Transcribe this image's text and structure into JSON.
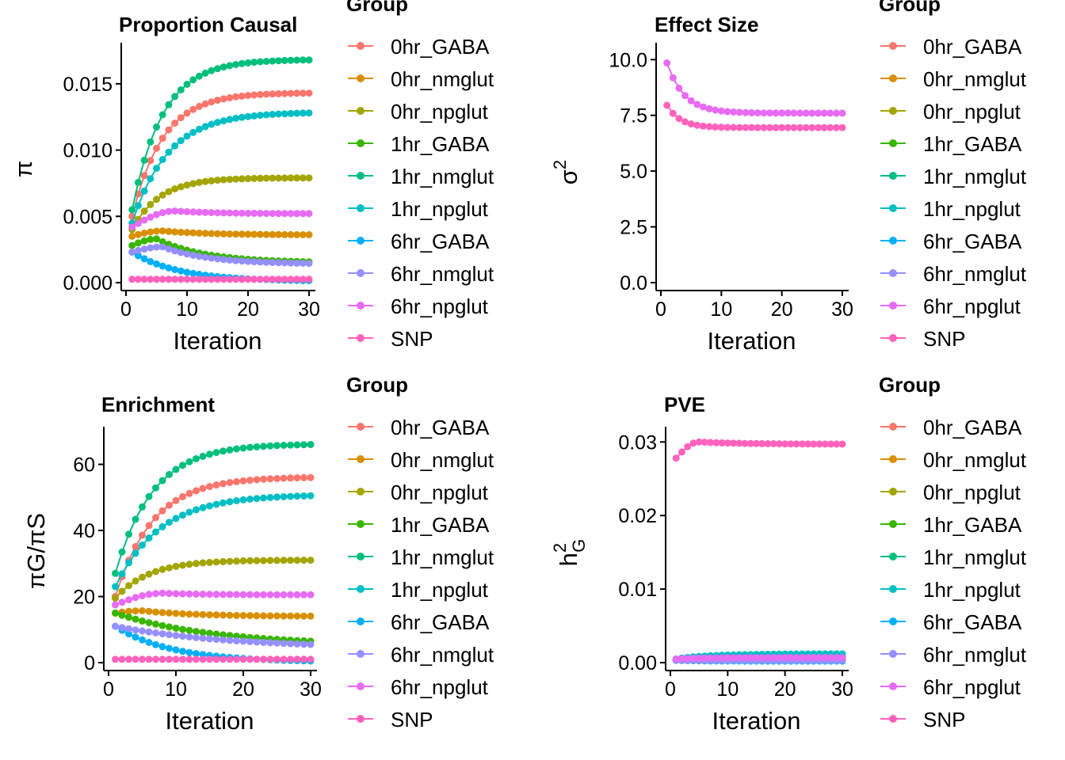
{
  "groups": [
    "0hr_GABA",
    "0hr_nmglut",
    "0hr_npglut",
    "1hr_GABA",
    "1hr_nmglut",
    "1hr_npglut",
    "6hr_GABA",
    "6hr_nmglut",
    "6hr_npglut",
    "SNP"
  ],
  "colors": {
    "0hr_GABA": "#F8766D",
    "0hr_nmglut": "#D89000",
    "0hr_npglut": "#A3A500",
    "1hr_GABA": "#39B600",
    "1hr_nmglut": "#00BF7D",
    "1hr_npglut": "#00BFC4",
    "6hr_GABA": "#00B0F6",
    "6hr_nmglut": "#9590FF",
    "6hr_npglut": "#E76BF3",
    "SNP": "#FF62BC"
  },
  "legend_title": "Group",
  "chart_data": [
    {
      "id": "proportion",
      "type": "line",
      "title": "Proportion Causal",
      "xlabel": "Iteration",
      "ylabel": "π",
      "xlim": [
        0,
        30
      ],
      "ylim": [
        0,
        0.0175
      ],
      "xticks": [
        0,
        10,
        20,
        30
      ],
      "yticks": [
        0.0,
        0.005,
        0.01,
        0.015
      ],
      "ytick_labels": [
        "0.000",
        "0.005",
        "0.010",
        "0.015"
      ],
      "legend": "right",
      "series": [
        {
          "name": "0hr_GABA",
          "start": 0.005,
          "end": 0.0143,
          "rate": 0.2
        },
        {
          "name": "0hr_nmglut",
          "start": 0.0035,
          "end": 0.0036,
          "peak": 0.0039,
          "peak_x": 6
        },
        {
          "name": "0hr_npglut",
          "start": 0.004,
          "end": 0.0079,
          "rate": 0.22
        },
        {
          "name": "1hr_GABA",
          "start": 0.0028,
          "end": 0.0015,
          "peak": 0.0033,
          "peak_x": 5
        },
        {
          "name": "1hr_nmglut",
          "start": 0.0055,
          "end": 0.0168,
          "rate": 0.2
        },
        {
          "name": "1hr_npglut",
          "start": 0.0045,
          "end": 0.0128,
          "rate": 0.17
        },
        {
          "name": "6hr_GABA",
          "start": 0.0023,
          "end": 0.00015,
          "rate": 0.13
        },
        {
          "name": "6hr_nmglut",
          "start": 0.0023,
          "end": 0.0014,
          "peak": 0.0027,
          "peak_x": 6
        },
        {
          "name": "6hr_npglut",
          "start": 0.0042,
          "end": 0.0052,
          "peak": 0.0054,
          "peak_x": 8
        },
        {
          "name": "SNP",
          "start": 0.00025,
          "end": 0.00025,
          "rate": 0.2
        }
      ]
    },
    {
      "id": "effect",
      "type": "line",
      "title": "Effect Size",
      "xlabel": "Iteration",
      "ylabel": "σ",
      "ylabel_sup": "2",
      "xlim": [
        0,
        30
      ],
      "ylim": [
        0,
        10.4
      ],
      "xticks": [
        0,
        10,
        20,
        30
      ],
      "yticks": [
        0,
        2.5,
        5,
        7.5,
        10
      ],
      "ytick_labels": [
        "0.0",
        "2.5",
        "5.0",
        "7.5",
        "10.0"
      ],
      "legend": "right",
      "series": [
        {
          "name": "6hr_npglut",
          "start": 9.85,
          "end": 7.6,
          "rate": 0.35
        },
        {
          "name": "SNP",
          "start": 7.95,
          "end": 6.95,
          "rate": 0.45
        }
      ]
    },
    {
      "id": "enrichment",
      "type": "line",
      "title": "Enrichment",
      "xlabel": "Iteration",
      "ylabel": "πG/πS",
      "xlim": [
        0,
        30
      ],
      "ylim": [
        0,
        69
      ],
      "xticks": [
        0,
        10,
        20,
        30
      ],
      "yticks": [
        0,
        20,
        40,
        60
      ],
      "ytick_labels": [
        "0",
        "20",
        "40",
        "60"
      ],
      "legend": "right",
      "series": [
        {
          "name": "0hr_GABA",
          "start": 20,
          "end": 56,
          "rate": 0.18
        },
        {
          "name": "0hr_nmglut",
          "start": 15,
          "end": 14,
          "peak": 15.7,
          "peak_x": 5
        },
        {
          "name": "0hr_npglut",
          "start": 19.5,
          "end": 31,
          "rate": 0.2
        },
        {
          "name": "1hr_GABA",
          "start": 15,
          "end": 6.5,
          "rate": 0.07
        },
        {
          "name": "1hr_nmglut",
          "start": 27,
          "end": 66,
          "rate": 0.18
        },
        {
          "name": "1hr_npglut",
          "start": 23,
          "end": 50.5,
          "rate": 0.15
        },
        {
          "name": "6hr_GABA",
          "start": 11,
          "end": 0.5,
          "rate": 0.12
        },
        {
          "name": "6hr_nmglut",
          "start": 11,
          "end": 5.5,
          "rate": 0.06
        },
        {
          "name": "6hr_npglut",
          "start": 17.5,
          "end": 20.5,
          "peak": 21,
          "peak_x": 8
        },
        {
          "name": "SNP",
          "start": 1,
          "end": 1,
          "rate": 0.2
        }
      ]
    },
    {
      "id": "pve",
      "type": "line",
      "title": "PVE",
      "xlabel": "Iteration",
      "ylabel": "h",
      "ylabel_sup": "2",
      "ylabel_sub": "G",
      "xlim": [
        0,
        30
      ],
      "ylim": [
        0,
        0.031
      ],
      "xticks": [
        0,
        10,
        20,
        30
      ],
      "yticks": [
        0.0,
        0.01,
        0.02,
        0.03
      ],
      "ytick_labels": [
        "0.00",
        "0.01",
        "0.02",
        "0.03"
      ],
      "legend": "right",
      "series": [
        {
          "name": "SNP",
          "start": 0.0278,
          "end": 0.0297,
          "peak": 0.03,
          "peak_x": 5
        },
        {
          "name": "0hr_GABA",
          "start": 0.0004,
          "end": 0.0009,
          "rate": 0.2
        },
        {
          "name": "0hr_nmglut",
          "start": 0.0004,
          "end": 0.0006,
          "rate": 0.2
        },
        {
          "name": "0hr_npglut",
          "start": 0.0004,
          "end": 0.0008,
          "rate": 0.2
        },
        {
          "name": "1hr_GABA",
          "start": 0.0004,
          "end": 0.0005,
          "rate": 0.2
        },
        {
          "name": "1hr_nmglut",
          "start": 0.0005,
          "end": 0.0011,
          "rate": 0.2
        },
        {
          "name": "1hr_npglut",
          "start": 0.0005,
          "end": 0.0012,
          "rate": 0.15
        },
        {
          "name": "6hr_GABA",
          "start": 0.0003,
          "end": 0.0002,
          "rate": 0.2
        },
        {
          "name": "6hr_nmglut",
          "start": 0.0003,
          "end": 0.0003,
          "rate": 0.2
        },
        {
          "name": "6hr_npglut",
          "start": 0.0005,
          "end": 0.0007,
          "rate": 0.2
        }
      ]
    }
  ]
}
